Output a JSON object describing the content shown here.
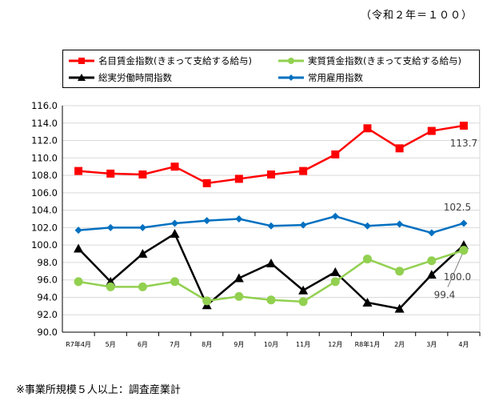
{
  "base_note": "（令和２年＝１００）",
  "footnote": "※事業所規模５人以上：調査産業計",
  "colors": {
    "nominal": "#ff0000",
    "real": "#92d050",
    "hours": "#000000",
    "employment": "#0070c0",
    "grid": "#d9d9d9",
    "axis": "#000000"
  },
  "chart_data": {
    "type": "line",
    "categories": [
      "R7年4月",
      "5月",
      "6月",
      "7月",
      "8月",
      "9月",
      "10月",
      "11月",
      "12月",
      "R8年1月",
      "2月",
      "3月",
      "4月"
    ],
    "ylim": [
      90.0,
      116.0
    ],
    "ytick_step": 2.0,
    "yticks": [
      "90.0",
      "92.0",
      "94.0",
      "96.0",
      "98.0",
      "100.0",
      "102.0",
      "104.0",
      "106.0",
      "108.0",
      "110.0",
      "112.0",
      "114.0",
      "116.0"
    ],
    "grid": true,
    "legend_position": "top",
    "series": [
      {
        "key": "nominal",
        "name": "名目賃金指数(きまって支給する給与)",
        "marker": "square",
        "values": [
          108.5,
          108.2,
          108.1,
          109.0,
          107.1,
          107.6,
          108.1,
          108.5,
          110.4,
          113.4,
          111.1,
          113.1,
          113.7
        ]
      },
      {
        "key": "real",
        "name": "実質賃金指数(きまって支給する給与)",
        "marker": "circle",
        "values": [
          95.8,
          95.2,
          95.2,
          95.8,
          93.6,
          94.1,
          93.7,
          93.5,
          95.8,
          98.4,
          97.0,
          98.2,
          99.4
        ]
      },
      {
        "key": "hours",
        "name": "総実労働時間指数",
        "marker": "triangle",
        "values": [
          99.6,
          95.8,
          99.0,
          101.3,
          93.1,
          96.2,
          97.9,
          94.8,
          96.9,
          93.4,
          92.7,
          96.6,
          100.0
        ]
      },
      {
        "key": "employment",
        "name": "常用雇用指数",
        "marker": "diamond",
        "values": [
          101.7,
          102.0,
          102.0,
          102.5,
          102.8,
          103.0,
          102.2,
          102.3,
          103.3,
          102.2,
          102.4,
          101.4,
          102.5
        ]
      }
    ],
    "annotations": [
      {
        "series": "nominal",
        "text": "113.7"
      },
      {
        "series": "employment",
        "text": "102.5"
      },
      {
        "series": "hours",
        "text": "100.0"
      },
      {
        "series": "real",
        "text": "99.4"
      }
    ]
  }
}
